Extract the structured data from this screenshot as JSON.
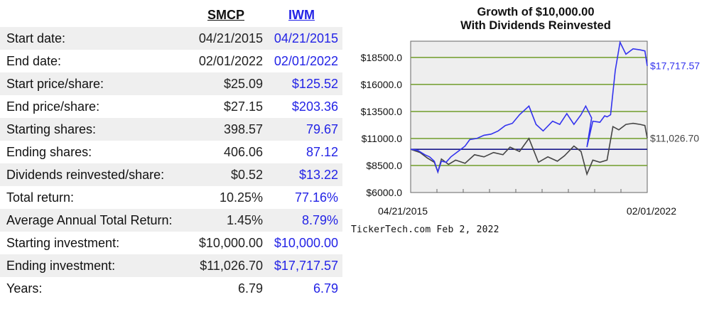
{
  "table": {
    "headers": [
      "SMCP",
      "IWM"
    ],
    "rows": [
      {
        "label": "Start date:",
        "smcp": "04/21/2015",
        "iwm": "04/21/2015"
      },
      {
        "label": "End date:",
        "smcp": "02/01/2022",
        "iwm": "02/01/2022"
      },
      {
        "label": "Start price/share:",
        "smcp": "$25.09",
        "iwm": "$125.52"
      },
      {
        "label": "End price/share:",
        "smcp": "$27.15",
        "iwm": "$203.36"
      },
      {
        "label": "Starting shares:",
        "smcp": "398.57",
        "iwm": "79.67"
      },
      {
        "label": "Ending shares:",
        "smcp": "406.06",
        "iwm": "87.12"
      },
      {
        "label": "Dividends reinvested/share:",
        "smcp": "$0.52",
        "iwm": "$13.22"
      },
      {
        "label": "Total return:",
        "smcp": "10.25%",
        "iwm": "77.16%"
      },
      {
        "label": "Average Annual Total Return:",
        "smcp": "1.45%",
        "iwm": "8.79%"
      },
      {
        "label": "Starting investment:",
        "smcp": "$10,000.00",
        "iwm": "$10,000.00"
      },
      {
        "label": "Ending investment:",
        "smcp": "$11,026.70",
        "iwm": "$17,717.57"
      },
      {
        "label": "Years:",
        "smcp": "6.79",
        "iwm": "6.79"
      }
    ]
  },
  "footer": "TickerTech.com Feb 2, 2022",
  "colors": {
    "smcp": "#444444",
    "iwm": "#3333ee",
    "grid": "#7aa33a",
    "baseline": "#1a1a8c",
    "plot_bg": "#eeeeee"
  },
  "chart_data": {
    "type": "line",
    "title": "Growth of $10,000.00\nWith Dividends Reinvested",
    "ylim": [
      6000,
      20000
    ],
    "y_ticks": [
      "$6000.0",
      "$8500.0",
      "$11000.0",
      "$13500.0",
      "$16000.0",
      "$18500.0"
    ],
    "y_tick_values": [
      6000,
      8500,
      11000,
      13500,
      16000,
      18500
    ],
    "x_labels": [
      "04/21/2015",
      "02/01/2022"
    ],
    "baseline": 10000,
    "grid": true,
    "series": [
      {
        "end_label": "$17,717.57",
        "points": [
          [
            0,
            10000
          ],
          [
            0.03,
            9900
          ],
          [
            0.06,
            9500
          ],
          [
            0.08,
            9300
          ],
          [
            0.1,
            8900
          ],
          [
            0.115,
            7900
          ],
          [
            0.13,
            8900
          ],
          [
            0.15,
            8800
          ],
          [
            0.17,
            9300
          ],
          [
            0.2,
            9800
          ],
          [
            0.23,
            10300
          ],
          [
            0.25,
            10900
          ],
          [
            0.28,
            11000
          ],
          [
            0.31,
            11300
          ],
          [
            0.34,
            11400
          ],
          [
            0.37,
            11700
          ],
          [
            0.4,
            12200
          ],
          [
            0.43,
            12400
          ],
          [
            0.46,
            13200
          ],
          [
            0.5,
            14000
          ],
          [
            0.53,
            12300
          ],
          [
            0.56,
            11700
          ],
          [
            0.6,
            12600
          ],
          [
            0.63,
            12300
          ],
          [
            0.66,
            13300
          ],
          [
            0.69,
            12300
          ],
          [
            0.72,
            13200
          ],
          [
            0.74,
            14000
          ],
          [
            0.765,
            12900
          ],
          [
            0.745,
            10200
          ],
          [
            0.77,
            12600
          ],
          [
            0.8,
            12500
          ],
          [
            0.82,
            13100
          ],
          [
            0.83,
            13000
          ],
          [
            0.845,
            13200
          ],
          [
            0.865,
            17300
          ],
          [
            0.885,
            19900
          ],
          [
            0.91,
            18800
          ],
          [
            0.94,
            19300
          ],
          [
            0.97,
            19200
          ],
          [
            0.99,
            19100
          ],
          [
            1.0,
            17717.57
          ]
        ]
      },
      {
        "end_label": "$11,026.70",
        "points": [
          [
            0,
            10000
          ],
          [
            0.04,
            9700
          ],
          [
            0.07,
            9200
          ],
          [
            0.1,
            8800
          ],
          [
            0.115,
            7900
          ],
          [
            0.13,
            9100
          ],
          [
            0.16,
            8600
          ],
          [
            0.19,
            9000
          ],
          [
            0.23,
            8700
          ],
          [
            0.27,
            9500
          ],
          [
            0.31,
            9300
          ],
          [
            0.35,
            9700
          ],
          [
            0.39,
            9500
          ],
          [
            0.42,
            10200
          ],
          [
            0.46,
            9800
          ],
          [
            0.5,
            11000
          ],
          [
            0.54,
            8800
          ],
          [
            0.58,
            9300
          ],
          [
            0.62,
            8900
          ],
          [
            0.65,
            9400
          ],
          [
            0.69,
            10300
          ],
          [
            0.72,
            9800
          ],
          [
            0.745,
            7700
          ],
          [
            0.77,
            9000
          ],
          [
            0.8,
            8800
          ],
          [
            0.83,
            9000
          ],
          [
            0.855,
            12100
          ],
          [
            0.88,
            11800
          ],
          [
            0.91,
            12300
          ],
          [
            0.94,
            12400
          ],
          [
            0.97,
            12300
          ],
          [
            0.99,
            12200
          ],
          [
            1.0,
            11026.7
          ]
        ]
      }
    ]
  }
}
